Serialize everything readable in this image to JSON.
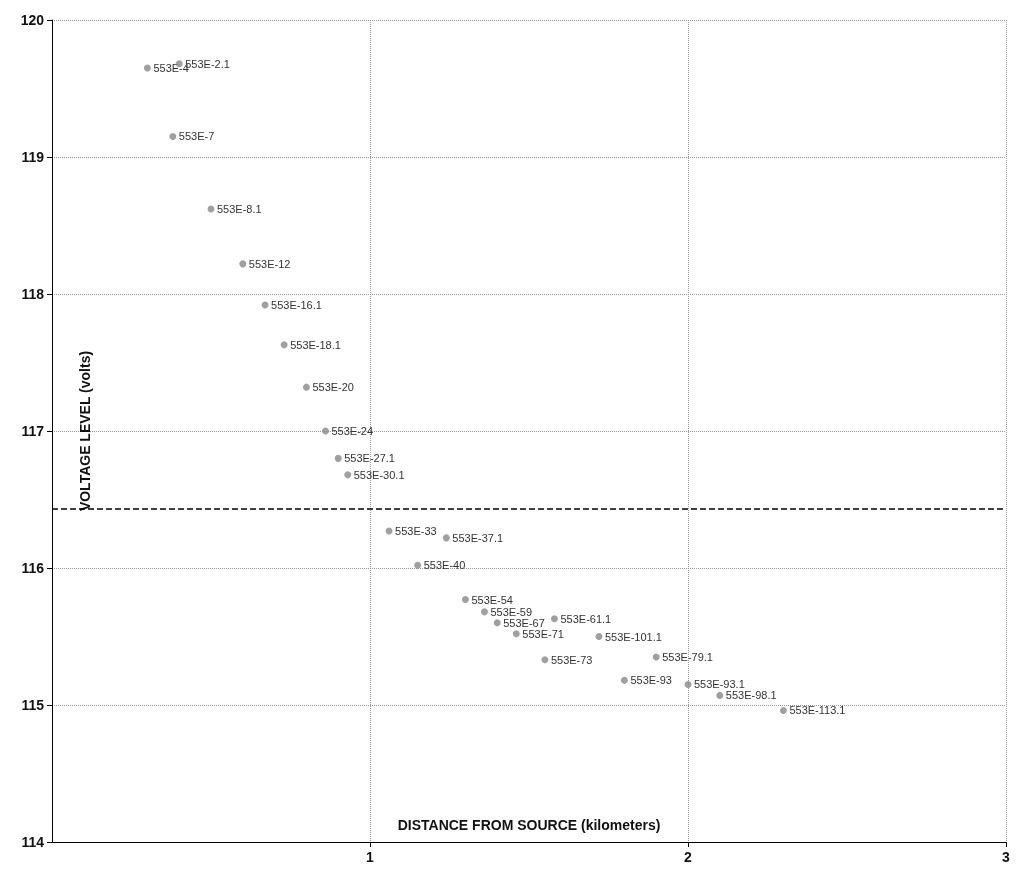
{
  "chart_data": {
    "type": "scatter",
    "xlabel": "DISTANCE FROM SOURCE (kilometers)",
    "ylabel": "VOLTAGE LEVEL (volts)",
    "x": [
      0.3,
      0.4,
      0.38,
      0.5,
      0.6,
      0.67,
      0.73,
      0.8,
      0.86,
      0.9,
      0.93,
      1.06,
      1.24,
      1.15,
      1.3,
      1.36,
      1.4,
      1.58,
      1.46,
      1.72,
      1.55,
      1.9,
      1.8,
      2.0,
      2.1,
      2.3
    ],
    "series": [
      {
        "color": "#888888",
        "values": [
          119.65,
          119.68,
          119.15,
          118.62,
          118.22,
          117.92,
          117.63,
          117.32,
          117.0,
          116.8,
          116.68,
          116.27,
          116.22,
          116.02,
          115.77,
          115.68,
          115.6,
          115.63,
          115.52,
          115.5,
          115.33,
          115.35,
          115.18,
          115.15,
          115.07,
          114.96
        ]
      }
    ],
    "annotations": [
      {
        "text": "553E-4",
        "x": 0.3,
        "y": 119.65
      },
      {
        "text": "553E-2.1",
        "x": 0.4,
        "y": 119.68
      },
      {
        "text": "553E-7",
        "x": 0.38,
        "y": 119.15
      },
      {
        "text": "553E-8.1",
        "x": 0.5,
        "y": 118.62
      },
      {
        "text": "553E-12",
        "x": 0.6,
        "y": 118.22
      },
      {
        "text": "553E-16.1",
        "x": 0.67,
        "y": 117.92
      },
      {
        "text": "553E-18.1",
        "x": 0.73,
        "y": 117.63
      },
      {
        "text": "553E-20",
        "x": 0.8,
        "y": 117.32
      },
      {
        "text": "553E-24",
        "x": 0.86,
        "y": 117.0
      },
      {
        "text": "553E-27.1",
        "x": 0.9,
        "y": 116.8
      },
      {
        "text": "553E-30.1",
        "x": 0.93,
        "y": 116.68
      },
      {
        "text": "553E-33",
        "x": 1.06,
        "y": 116.27
      },
      {
        "text": "553E-37.1",
        "x": 1.24,
        "y": 116.22
      },
      {
        "text": "553E-40",
        "x": 1.15,
        "y": 116.02
      },
      {
        "text": "553E-54",
        "x": 1.3,
        "y": 115.77
      },
      {
        "text": "553E-59",
        "x": 1.36,
        "y": 115.68
      },
      {
        "text": "553E-67",
        "x": 1.4,
        "y": 115.6
      },
      {
        "text": "553E-61.1",
        "x": 1.58,
        "y": 115.63
      },
      {
        "text": "553E-71",
        "x": 1.46,
        "y": 115.52
      },
      {
        "text": "553E-101.1",
        "x": 1.72,
        "y": 115.5
      },
      {
        "text": "553E-73",
        "x": 1.55,
        "y": 115.33
      },
      {
        "text": "553E-79.1",
        "x": 1.9,
        "y": 115.35
      },
      {
        "text": "553E-93",
        "x": 1.8,
        "y": 115.18
      },
      {
        "text": "553E-93.1",
        "x": 2.0,
        "y": 115.15
      },
      {
        "text": "553E-98.1",
        "x": 2.1,
        "y": 115.07
      },
      {
        "text": "553E-113.1",
        "x": 2.3,
        "y": 114.96
      }
    ],
    "xlim": [
      0,
      3
    ],
    "xticks": [
      1,
      2,
      3
    ],
    "ylim": [
      114,
      120
    ],
    "yticks": [
      114,
      115,
      116,
      117,
      118,
      119,
      120
    ],
    "ref_lines": [
      {
        "axis": "y",
        "value": 116.43,
        "color": "#000000",
        "line_style": "dashed"
      }
    ],
    "grid": true,
    "marker": "circle"
  }
}
